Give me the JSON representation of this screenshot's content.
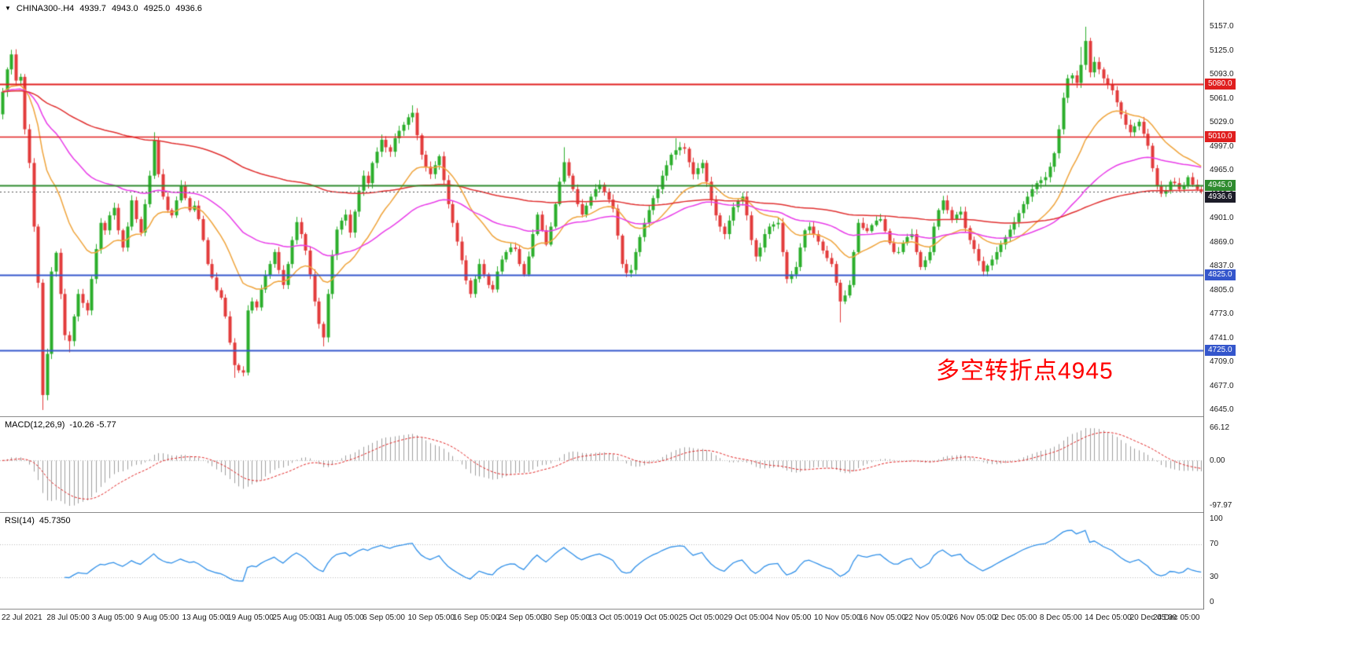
{
  "header": {
    "symbol": "CHINA300-.H4",
    "open": "4939.7",
    "high": "4943.0",
    "low": "4925.0",
    "close": "4936.6"
  },
  "indicators": {
    "macd": {
      "label": "MACD(12,26,9)",
      "values": "-10.26 -5.77",
      "axis_max": "66.12",
      "axis_zero": "0.00",
      "axis_min": "-97.97"
    },
    "rsi": {
      "label": "RSI(14)",
      "value": "45.7350",
      "axis": [
        "100",
        "70",
        "30",
        "0"
      ]
    }
  },
  "annotation": {
    "text": "多空转折点4945",
    "color": "#ff0000"
  },
  "chart_data": {
    "type": "candlestick",
    "title": "CHINA300-.H4",
    "timeframe": "H4",
    "first_open": 5040,
    "current_price": {
      "value": 4936.6,
      "label": "4936.6",
      "badge_color": "#1c1c28"
    },
    "y_axis": {
      "min": 4645,
      "max": 5157,
      "tick_step": 32,
      "ticks": [
        "5157.0",
        "5125.0",
        "5093.0",
        "5061.0",
        "5029.0",
        "4997.0",
        "4965.0",
        "4933.0",
        "4901.0",
        "4869.0",
        "4837.0",
        "4805.0",
        "4773.0",
        "4741.0",
        "4709.0",
        "4677.0",
        "4645.0"
      ]
    },
    "x_labels": [
      "22 Jul 2021",
      "28 Jul 05:00",
      "3 Aug 05:00",
      "9 Aug 05:00",
      "13 Aug 05:00",
      "19 Aug 05:00",
      "25 Aug 05:00",
      "31 Aug 05:00",
      "6 Sep 05:00",
      "10 Sep 05:00",
      "16 Sep 05:00",
      "24 Sep 05:00",
      "30 Sep 05:00",
      "13 Oct 05:00",
      "19 Oct 05:00",
      "25 Oct 05:00",
      "29 Oct 05:00",
      "4 Nov 05:00",
      "10 Nov 05:00",
      "16 Nov 05:00",
      "22 Nov 05:00",
      "26 Nov 05:00",
      "2 Dec 05:00",
      "8 Dec 05:00",
      "14 Dec 05:00",
      "20 Dec 05:00",
      "24 Dec 05:00"
    ],
    "levels": [
      {
        "price": 5080.0,
        "label": "5080.0",
        "color": "#e01f1f",
        "width": 2,
        "type": "resistance"
      },
      {
        "price": 5010.0,
        "label": "5010.0",
        "color": "#e01f1f",
        "width": 1.5,
        "type": "resistance"
      },
      {
        "price": 4945.0,
        "label": "4945.0",
        "color": "#2e8b2e",
        "width": 2,
        "type": "pivot"
      },
      {
        "price": 4825.0,
        "label": "4825.0",
        "color": "#3456cc",
        "width": 2,
        "type": "support"
      },
      {
        "price": 4725.0,
        "label": "4725.0",
        "color": "#3456cc",
        "width": 2,
        "type": "support"
      }
    ],
    "moving_averages": [
      {
        "period": 20,
        "color": "#efa33a",
        "name": "fast"
      },
      {
        "period": 55,
        "color": "#e83ce8",
        "name": "medium"
      },
      {
        "period": 160,
        "color": "#e03030",
        "name": "slow"
      }
    ],
    "colors": {
      "candle_up": "#2bae2b",
      "candle_down": "#e23b3b",
      "macd_hist": "#9e9e9e",
      "macd_signal": "#e02222",
      "rsi_line": "#2f8fe8"
    },
    "wick_specials": {
      "9": {
        "low": 4645
      },
      "15": {
        "low": 4722
      },
      "34": {
        "high": 5016
      },
      "52": {
        "low": 4688
      },
      "54": {
        "low": 4690
      },
      "72": {
        "low": 4730
      },
      "92": {
        "high": 5052
      },
      "126": {
        "high": 4996
      },
      "151": {
        "high": 5008
      },
      "188": {
        "low": 4762
      },
      "242": {
        "high": 5130
      },
      "243": {
        "high": 5157
      }
    },
    "closes": [
      5070,
      5100,
      5120,
      5085,
      5090,
      5020,
      4975,
      4890,
      4815,
      4665,
      4720,
      4830,
      4855,
      4800,
      4745,
      4737,
      4770,
      4800,
      4788,
      4778,
      4820,
      4860,
      4895,
      4885,
      4905,
      4915,
      4885,
      4862,
      4890,
      4925,
      4900,
      4882,
      4920,
      4958,
      5005,
      4960,
      4930,
      4912,
      4905,
      4925,
      4945,
      4928,
      4912,
      4918,
      4900,
      4872,
      4840,
      4822,
      4805,
      4795,
      4770,
      4735,
      4705,
      4698,
      4695,
      4778,
      4790,
      4782,
      4806,
      4825,
      4840,
      4856,
      4832,
      4812,
      4840,
      4872,
      4896,
      4880,
      4858,
      4826,
      4790,
      4760,
      4742,
      4800,
      4852,
      4886,
      4898,
      4906,
      4882,
      4910,
      4938,
      4958,
      4948,
      4975,
      4990,
      5006,
      4996,
      4990,
      5008,
      5018,
      5026,
      5036,
      5042,
      5012,
      4986,
      4970,
      4960,
      4972,
      4984,
      4952,
      4920,
      4895,
      4870,
      4845,
      4818,
      4800,
      4820,
      4840,
      4826,
      4812,
      4806,
      4830,
      4846,
      4856,
      4862,
      4860,
      4840,
      4826,
      4850,
      4880,
      4906,
      4885,
      4866,
      4890,
      4920,
      4950,
      4976,
      4958,
      4940,
      4920,
      4906,
      4918,
      4930,
      4940,
      4946,
      4936,
      4926,
      4914,
      4878,
      4840,
      4828,
      4832,
      4856,
      4876,
      4895,
      4912,
      4928,
      4940,
      4958,
      4972,
      4986,
      4992,
      4996,
      4994,
      4976,
      4960,
      4968,
      4975,
      4950,
      4925,
      4905,
      4890,
      4880,
      4898,
      4916,
      4925,
      4930,
      4905,
      4872,
      4850,
      4862,
      4880,
      4890,
      4893,
      4895,
      4856,
      4820,
      4826,
      4836,
      4862,
      4885,
      4890,
      4880,
      4870,
      4858,
      4848,
      4840,
      4815,
      4790,
      4798,
      4812,
      4856,
      4895,
      4888,
      4884,
      4892,
      4898,
      4900,
      4884,
      4868,
      4856,
      4856,
      4868,
      4876,
      4880,
      4856,
      4836,
      4845,
      4856,
      4890,
      4912,
      4925,
      4912,
      4900,
      4906,
      4910,
      4888,
      4872,
      4860,
      4844,
      4830,
      4838,
      4846,
      4856,
      4866,
      4876,
      4886,
      4896,
      4908,
      4920,
      4930,
      4940,
      4948,
      4952,
      4956,
      4970,
      4988,
      5020,
      5062,
      5088,
      5092,
      5082,
      5106,
      5138,
      5096,
      5110,
      5100,
      5088,
      5080,
      5072,
      5056,
      5040,
      5026,
      5016,
      5024,
      5030,
      5014,
      4998,
      4968,
      4944,
      4934,
      4938,
      4950,
      4948,
      4940,
      4944,
      4956,
      4946,
      4940,
      4936.6
    ]
  }
}
